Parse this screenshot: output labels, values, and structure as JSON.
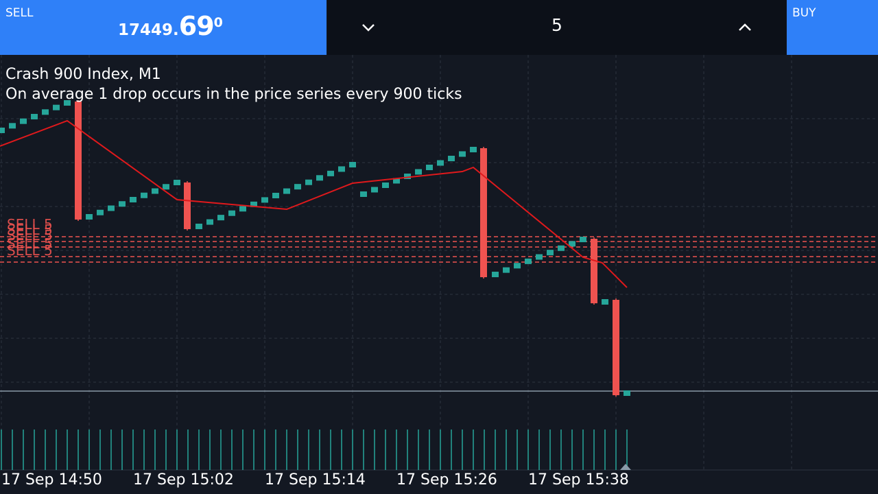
{
  "order_bar": {
    "sell_label": "SELL",
    "sell_price_main": "17449.",
    "sell_price_big": "69",
    "sell_price_sup": "0",
    "volume_value": "5",
    "buy_label": "BUY",
    "decrease_icon": "chevron-down-icon",
    "increase_icon": "chevron-up-icon"
  },
  "chart_info": {
    "symbol_line": "Crash 900 Index, M1",
    "description": "On average 1 drop occurs in the price series every 900 ticks"
  },
  "order_lines": [
    "SELL 5",
    "SELL 5",
    "SELL 5",
    "SELL 5",
    "SELL 5"
  ],
  "chart_data": {
    "type": "candlestick",
    "x_tick_labels": [
      "17 Sep 14:50",
      "17 Sep 15:02",
      "17 Sep 15:14",
      "17 Sep 15:26",
      "17 Sep 15:38"
    ],
    "grid": true,
    "colors": {
      "up_candle": "#26a69a",
      "down_candle": "#ef5350",
      "moving_average": "#e0191c",
      "order_line": "#ef5350",
      "bid_line": "#8a9aa8",
      "volume": "#26a69a",
      "background": "#131822",
      "grid": "#2e3440"
    }
  }
}
